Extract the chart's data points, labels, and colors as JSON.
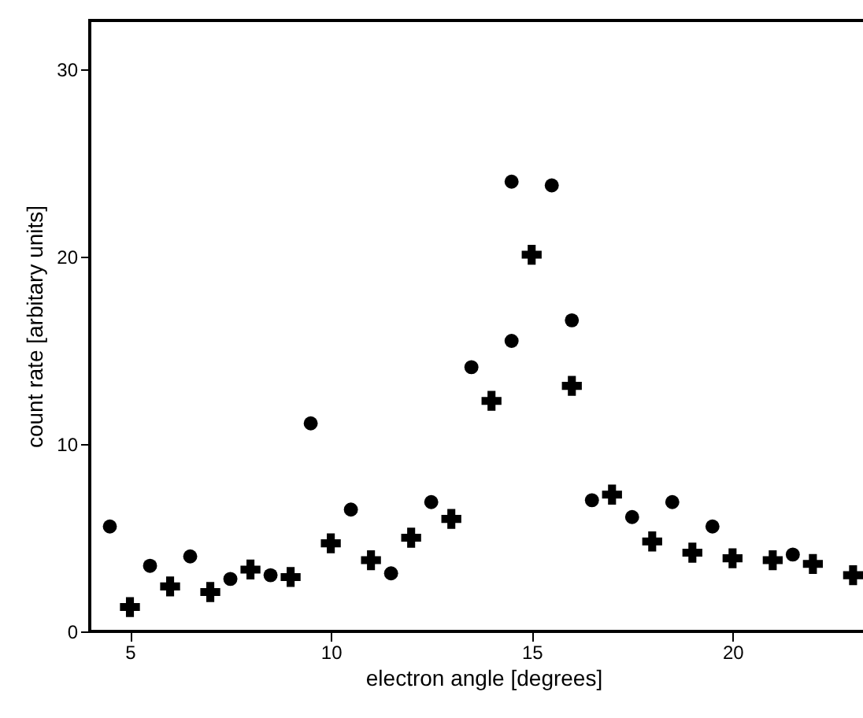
{
  "chart_data": {
    "type": "scatter",
    "xlabel": "electron angle [degrees]",
    "ylabel": "count rate [arbitary units]",
    "xlim": [
      4,
      23.6
    ],
    "ylim": [
      0,
      32.6
    ],
    "xticks": [
      5,
      10,
      15,
      20
    ],
    "yticks": [
      0,
      10,
      20,
      30
    ],
    "grid": false,
    "series": [
      {
        "color": "#000000",
        "marker": "circle",
        "x": [
          4.5,
          5.5,
          6.5,
          7.5,
          8.5,
          9.5,
          10.5,
          11.5,
          12.5,
          13.5,
          14.5,
          14.5,
          15.5,
          16,
          16.5,
          17.5,
          18.5,
          19.5,
          21.5
        ],
        "values": [
          5.6,
          3.5,
          4.0,
          2.8,
          3.0,
          11.1,
          6.5,
          3.1,
          6.9,
          14.1,
          24.0,
          15.5,
          23.8,
          16.6,
          7.0,
          6.1,
          6.9,
          5.6,
          4.1
        ]
      },
      {
        "color": "#000000",
        "marker": "cross",
        "x": [
          5,
          6,
          7,
          8,
          9,
          10,
          11,
          12,
          13,
          14,
          15,
          16,
          17,
          18,
          19,
          20,
          21,
          22,
          23
        ],
        "values": [
          1.3,
          2.4,
          2.1,
          3.3,
          2.9,
          4.7,
          3.8,
          5.0,
          6.0,
          12.3,
          20.1,
          13.1,
          7.3,
          4.8,
          4.2,
          3.9,
          3.8,
          3.6,
          3.0
        ]
      }
    ]
  }
}
